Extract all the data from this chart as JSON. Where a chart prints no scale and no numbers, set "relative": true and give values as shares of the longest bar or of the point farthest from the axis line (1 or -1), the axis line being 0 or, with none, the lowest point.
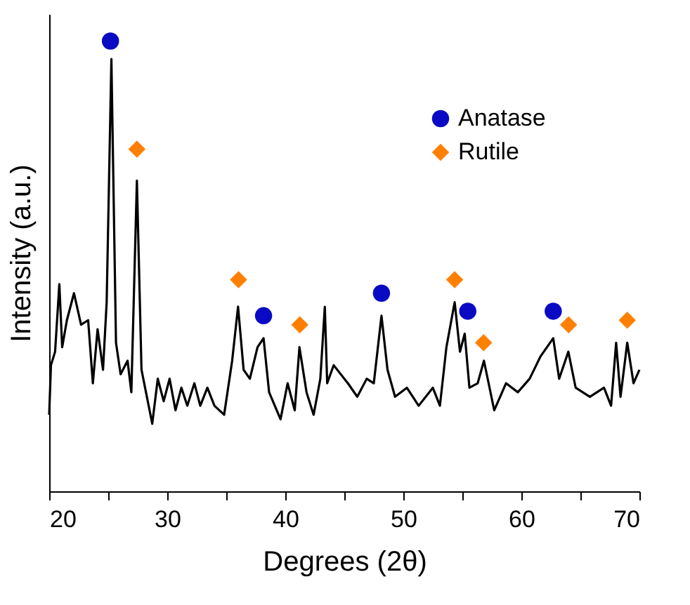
{
  "chart_data": {
    "type": "line",
    "relative": true,
    "xlabel": "Degrees (2θ)",
    "ylabel": "Intensity (a.u.)",
    "xlim": [
      20,
      70
    ],
    "xticks": [
      20,
      {
        "value": 25,
        "label": null
      },
      30,
      {
        "value": 35,
        "label": null
      },
      40,
      {
        "value": 45,
        "label": null
      },
      50,
      {
        "value": 55,
        "label": null
      },
      60,
      {
        "value": 65,
        "label": null
      },
      70
    ],
    "legend": "top right",
    "grid": false,
    "series": [
      {
        "color": "#000000",
        "line_style": "solid",
        "marker": "none",
        "x": [
          20.0,
          20.15,
          20.5,
          20.86,
          21.1,
          21.5,
          22.1,
          22.7,
          23.3,
          23.7,
          24.1,
          24.56,
          24.87,
          25.27,
          25.66,
          26.05,
          26.64,
          26.96,
          27.43,
          27.82,
          28.2,
          28.73,
          29.2,
          29.7,
          30.2,
          30.7,
          31.2,
          31.7,
          32.3,
          32.8,
          33.4,
          34.0,
          34.82,
          35.5,
          36.0,
          36.47,
          37.0,
          37.65,
          38.16,
          38.63,
          39.6,
          40.2,
          40.8,
          41.2,
          41.8,
          42.4,
          42.97,
          43.35,
          43.55,
          44.1,
          45.3,
          46.1,
          46.9,
          47.5,
          48.15,
          48.66,
          49.3,
          50.3,
          51.3,
          52.5,
          53.1,
          53.65,
          54.35,
          54.8,
          55.2,
          55.6,
          56.3,
          56.83,
          57.7,
          58.7,
          59.7,
          60.7,
          61.63,
          62.7,
          63.2,
          63.98,
          64.6,
          65.8,
          67.0,
          67.6,
          68.03,
          68.4,
          68.97,
          69.5,
          70.0
        ],
        "values": [
          0.17,
          0.28,
          0.31,
          0.46,
          0.32,
          0.38,
          0.44,
          0.37,
          0.38,
          0.24,
          0.36,
          0.27,
          0.42,
          0.96,
          0.33,
          0.26,
          0.29,
          0.22,
          0.69,
          0.27,
          0.22,
          0.15,
          0.25,
          0.2,
          0.25,
          0.18,
          0.23,
          0.19,
          0.24,
          0.19,
          0.23,
          0.19,
          0.17,
          0.29,
          0.41,
          0.27,
          0.25,
          0.32,
          0.34,
          0.22,
          0.16,
          0.24,
          0.18,
          0.32,
          0.22,
          0.17,
          0.25,
          0.41,
          0.24,
          0.28,
          0.24,
          0.21,
          0.25,
          0.24,
          0.39,
          0.27,
          0.21,
          0.23,
          0.19,
          0.23,
          0.19,
          0.32,
          0.42,
          0.31,
          0.35,
          0.23,
          0.24,
          0.29,
          0.18,
          0.24,
          0.22,
          0.25,
          0.3,
          0.34,
          0.25,
          0.31,
          0.23,
          0.21,
          0.23,
          0.19,
          0.33,
          0.21,
          0.33,
          0.24,
          0.27
        ]
      },
      {
        "type": "scatter",
        "name": "Anatase",
        "color": "#0a0ac4",
        "marker": "circle",
        "x": [
          25.19,
          38.16,
          48.15,
          55.46,
          62.7
        ],
        "values": [
          1.0,
          0.39,
          0.44,
          0.4,
          0.4
        ]
      },
      {
        "type": "scatter",
        "name": "Rutile",
        "color": "#ff8000",
        "marker": "diamond",
        "x": [
          27.43,
          36.04,
          41.23,
          54.35,
          56.8,
          64.0,
          68.97
        ],
        "values": [
          0.76,
          0.47,
          0.37,
          0.47,
          0.33,
          0.37,
          0.38
        ]
      }
    ]
  }
}
